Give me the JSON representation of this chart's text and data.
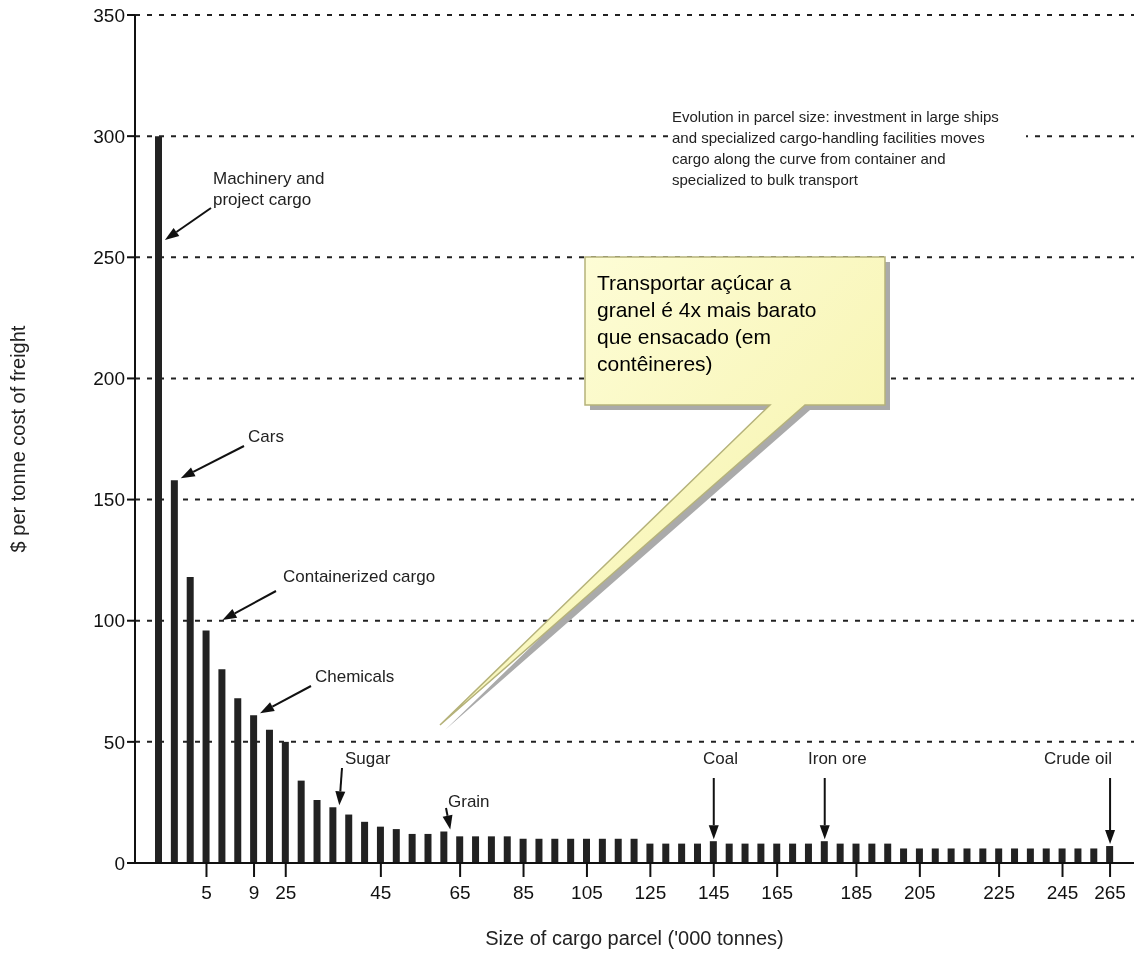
{
  "chart_data": {
    "type": "bar",
    "xlabel": "Size of cargo parcel ('000 tonnes)",
    "ylabel": "$ per tonne cost of freight",
    "categories": [
      null,
      null,
      null,
      "5",
      null,
      null,
      "9",
      null,
      "25",
      null,
      null,
      null,
      null,
      null,
      "45",
      null,
      null,
      null,
      null,
      "65",
      null,
      null,
      null,
      "85",
      null,
      null,
      null,
      "105",
      null,
      null,
      null,
      "125",
      null,
      null,
      null,
      "145",
      null,
      null,
      null,
      "165",
      null,
      null,
      null,
      null,
      "185",
      null,
      null,
      null,
      "205",
      null,
      null,
      null,
      null,
      "225",
      null,
      null,
      null,
      "245",
      null,
      null,
      "265"
    ],
    "values": [
      300,
      158,
      118,
      96,
      80,
      68,
      61,
      55,
      50,
      34,
      26,
      23,
      20,
      17,
      15,
      14,
      12,
      12,
      13,
      11,
      11,
      11,
      11,
      10,
      10,
      10,
      10,
      10,
      10,
      10,
      10,
      8,
      8,
      8,
      8,
      9,
      8,
      8,
      8,
      8,
      8,
      8,
      9,
      8,
      8,
      8,
      8,
      6,
      6,
      6,
      6,
      6,
      6,
      6,
      6,
      6,
      6,
      6,
      6,
      6,
      7
    ],
    "color": "#222222",
    "ylim": [
      0,
      350
    ],
    "yticks": [
      0,
      50,
      100,
      150,
      200,
      250,
      300,
      350
    ],
    "grid": "y",
    "annotations": [
      "Evolution in parcel size: investment in large ships and specialized cargo-handling facilities moves cargo along the curve from container and specialized to bulk transport",
      "Machinery and project cargo",
      "Cars",
      "Containerized cargo",
      "Chemicals",
      "Sugar",
      "Grain",
      "Coal",
      "Iron ore",
      "Crude oil",
      "Transportar açúcar a granel é 4x mais barato que ensacado (em contêineres)"
    ]
  }
}
